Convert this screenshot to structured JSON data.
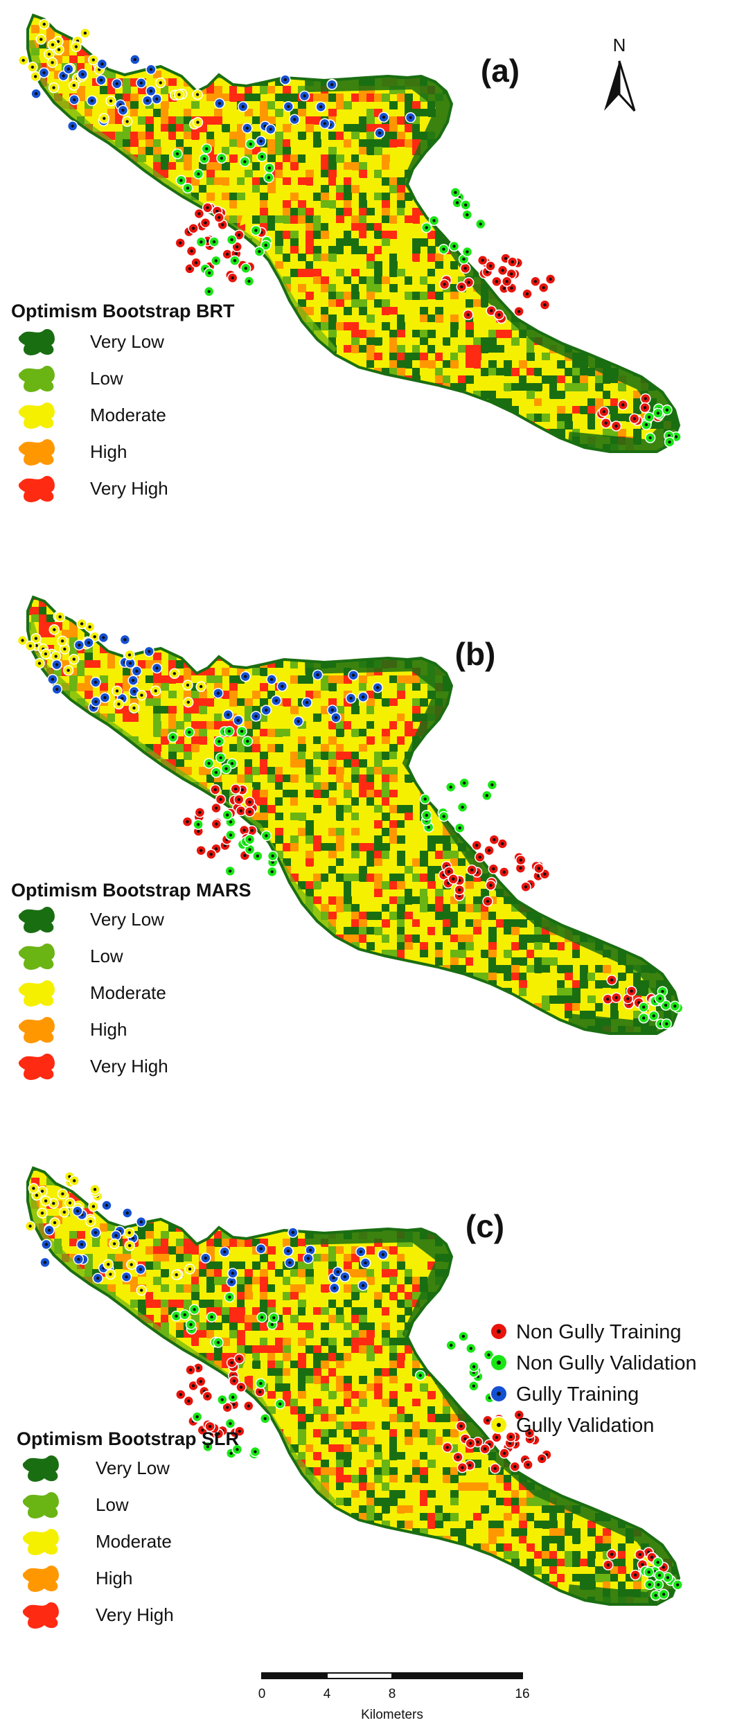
{
  "colors": {
    "very_low": "#1a6e12",
    "low": "#6ab414",
    "moderate": "#f5f000",
    "high": "#ff9800",
    "very_high": "#ff2a12",
    "non_gully_training": "#e8140c",
    "non_gully_validation": "#18e614",
    "gully_training": "#1450d2",
    "gully_validation": "#f5f000"
  },
  "north_arrow": {
    "label": "N"
  },
  "panels": [
    {
      "id": "a",
      "label": "(a)",
      "legend": {
        "title": "Optimism Bootstrap BRT",
        "classes": [
          "Very Low",
          "Low",
          "Moderate",
          "High",
          "Very High"
        ]
      }
    },
    {
      "id": "b",
      "label": "(b)",
      "legend": {
        "title": "Optimism Bootstrap MARS",
        "classes": [
          "Very Low",
          "Low",
          "Moderate",
          "High",
          "Very High"
        ]
      }
    },
    {
      "id": "c",
      "label": "(c)",
      "legend": {
        "title": "Optimism Bootstrap SLR",
        "classes": [
          "Very Low",
          "Low",
          "Moderate",
          "High",
          "Very High"
        ]
      }
    }
  ],
  "point_legend": [
    {
      "label": "Non Gully Training",
      "color_key": "non_gully_training"
    },
    {
      "label": "Non Gully Validation",
      "color_key": "non_gully_validation"
    },
    {
      "label": "Gully Training",
      "color_key": "gully_training"
    },
    {
      "label": "Gully Validation",
      "color_key": "gully_validation"
    }
  ],
  "scale_bar": {
    "ticks": [
      "0",
      "4",
      "8",
      "16"
    ],
    "unit": "Kilometers"
  }
}
